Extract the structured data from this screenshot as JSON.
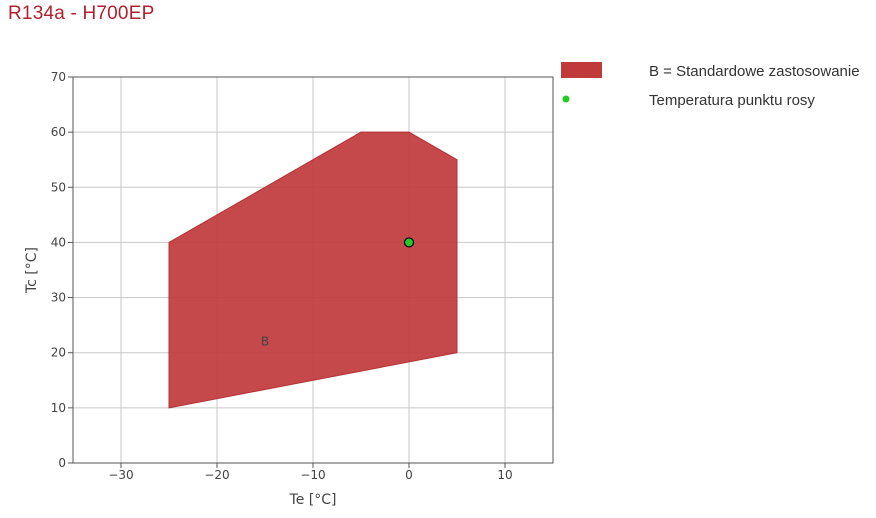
{
  "page": {
    "title": "R134a - H700EP"
  },
  "colors": {
    "title": "#b0212e",
    "region_fill": "#c0393b",
    "dew_point": "#22cc22",
    "grid": "#c8c8c8",
    "axis": "#555555"
  },
  "chart_data": {
    "type": "area",
    "title": "R134a - H700EP",
    "xlabel": "Te [°C]",
    "ylabel": "Tc [°C]",
    "xlim": [
      -35,
      15
    ],
    "ylim": [
      0,
      70
    ],
    "xticks": [
      -30,
      -20,
      -10,
      0,
      10
    ],
    "yticks": [
      0,
      10,
      20,
      30,
      40,
      50,
      60,
      70
    ],
    "xtick_labels": [
      "−30",
      "−20",
      "−10",
      "0",
      "10"
    ],
    "ytick_labels": [
      "0",
      "10",
      "20",
      "30",
      "40",
      "50",
      "60",
      "70"
    ],
    "grid": true,
    "legend_position": "right",
    "series": [
      {
        "name": "B = Standardowe zastosowanie",
        "kind": "polygon",
        "label": "B",
        "label_at": [
          -15,
          22
        ],
        "points": [
          [
            -25,
            10
          ],
          [
            -25,
            40
          ],
          [
            -5,
            60
          ],
          [
            0,
            60
          ],
          [
            5,
            55
          ],
          [
            5,
            20
          ],
          [
            -25,
            10
          ]
        ]
      },
      {
        "name": "Temperatura punktu rosy",
        "kind": "point",
        "points": [
          [
            0,
            40
          ]
        ]
      }
    ]
  }
}
